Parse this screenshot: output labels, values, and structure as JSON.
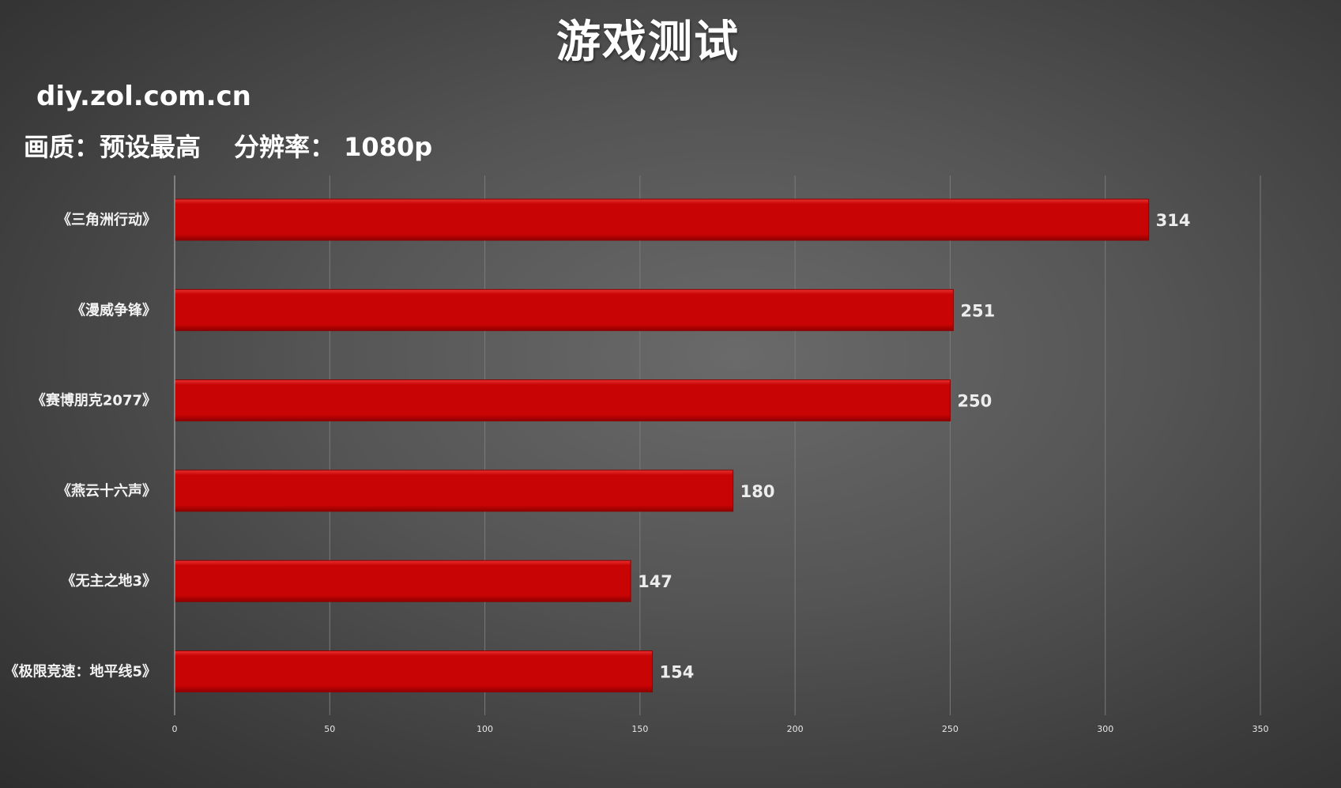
{
  "header": {
    "title": "游戏测试",
    "watermark": "diy.zol.com.cn",
    "quality_label": "画质：预设最高",
    "resolution_label": "分辨率： 1080p"
  },
  "colors": {
    "bar": "#c80404",
    "bar_highlight": "#e83030",
    "bar_shadow": "#8e0000",
    "text": "#ffffff"
  },
  "chart_data": {
    "type": "bar",
    "orientation": "horizontal",
    "title": "游戏测试",
    "categories": [
      "《三角洲行动》",
      "《漫威争锋》",
      "《赛博朋克2077》",
      "《燕云十六声》",
      "《无主之地3》",
      "《极限竞速：地平线5》"
    ],
    "values": [
      314,
      251,
      250,
      180,
      147,
      154
    ],
    "xlim": [
      0,
      350
    ],
    "xticks": [
      0,
      50,
      100,
      150,
      200,
      250,
      300,
      350
    ],
    "grid": true,
    "legend": "none",
    "data_labels": true
  }
}
